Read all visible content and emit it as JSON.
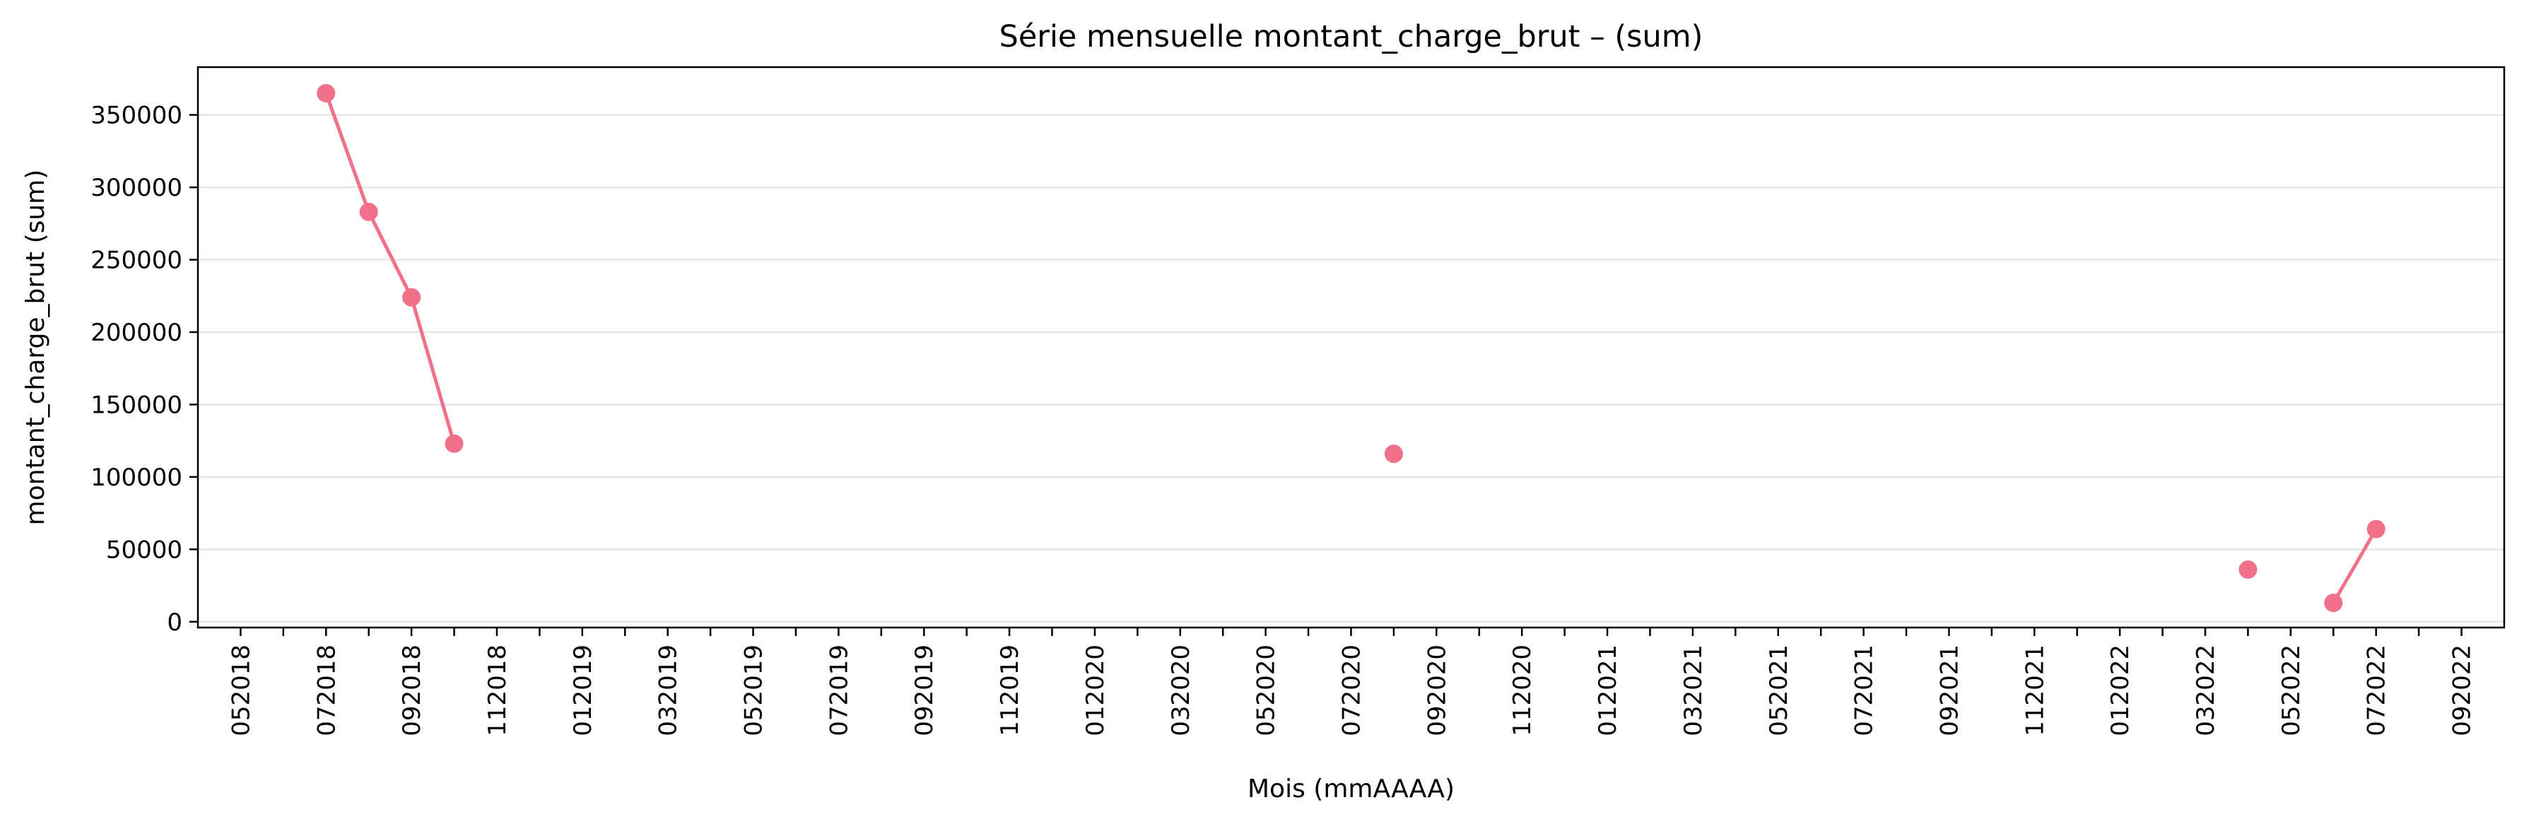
{
  "chart_data": {
    "type": "line",
    "title": "Série mensuelle montant_charge_brut – (sum)",
    "xlabel": "Mois (mmAAAA)",
    "ylabel": "montant_charge_brut (sum)",
    "ylim": [
      -4000,
      383000
    ],
    "yticks": [
      0,
      50000,
      100000,
      150000,
      200000,
      250000,
      300000,
      350000
    ],
    "grid": "horizontal",
    "color": "#f07189",
    "x_start_month": "2018-04",
    "x_end_month": "2022-10",
    "xticks": [
      "052018",
      "062018",
      "072018",
      "082018",
      "092018",
      "102018",
      "112018",
      "122018",
      "012019",
      "022019",
      "032019",
      "042019",
      "052019",
      "062019",
      "072019",
      "082019",
      "092019",
      "102019",
      "112019",
      "122019",
      "012020",
      "022020",
      "032020",
      "042020",
      "052020",
      "062020",
      "072020",
      "082020",
      "092020",
      "102020",
      "112020",
      "122020",
      "012021",
      "022021",
      "032021",
      "042021",
      "052021",
      "062021",
      "072021",
      "082021",
      "092021",
      "102021",
      "112021",
      "122021",
      "012022",
      "022022",
      "032022",
      "042022",
      "052022",
      "062022",
      "072022",
      "082022",
      "092022"
    ],
    "label_every": 2,
    "series": [
      {
        "name": "montant_charge_brut (sum)",
        "points": [
          {
            "month": "072018",
            "value": 365000
          },
          {
            "month": "082018",
            "value": 283000
          },
          {
            "month": "092018",
            "value": 224000
          },
          {
            "month": "102018",
            "value": 123000
          },
          {
            "month": "082020",
            "value": 116000
          },
          {
            "month": "042022",
            "value": 36000
          },
          {
            "month": "062022",
            "value": 13000
          },
          {
            "month": "072022",
            "value": 64000
          }
        ]
      }
    ]
  }
}
